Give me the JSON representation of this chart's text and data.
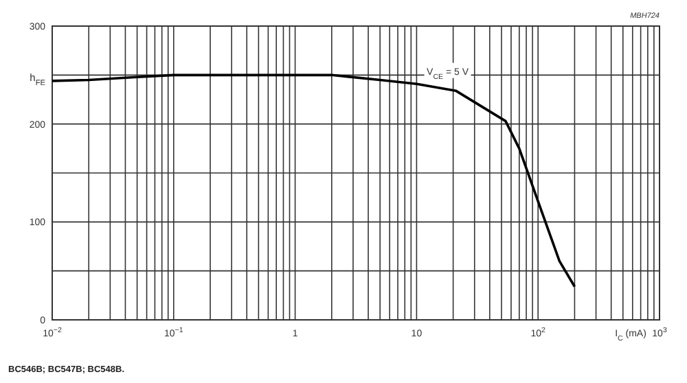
{
  "chart_data": {
    "type": "line",
    "xlabel": "I$_{C}$ (mA)",
    "ylabel": "h$_{FE}$",
    "log": "x",
    "x": [
      0.01,
      0.02,
      0.05,
      0.1,
      1,
      2,
      5,
      10,
      21,
      54,
      70,
      100,
      150,
      200
    ],
    "series": [
      {
        "color": "#000000",
        "values": [
          244,
          245,
          248,
          250,
          250,
          250,
          245,
          241,
          234,
          203,
          175,
          121,
          60,
          34
        ]
      }
    ],
    "xlim": [
      0.01,
      1000
    ],
    "xticks": [
      {
        "value": 0.01,
        "label": "10$^{−2}$"
      },
      {
        "value": 0.02,
        "label": null
      },
      {
        "value": 0.03,
        "label": null
      },
      {
        "value": 0.04,
        "label": null
      },
      {
        "value": 0.05,
        "label": null
      },
      {
        "value": 0.06,
        "label": null
      },
      {
        "value": 0.07,
        "label": null
      },
      {
        "value": 0.08,
        "label": null
      },
      {
        "value": 0.09,
        "label": null
      },
      {
        "value": 0.1,
        "label": "10$^{−1}$"
      },
      {
        "value": 0.2,
        "label": null
      },
      {
        "value": 0.3,
        "label": null
      },
      {
        "value": 0.4,
        "label": null
      },
      {
        "value": 0.5,
        "label": null
      },
      {
        "value": 0.6,
        "label": null
      },
      {
        "value": 0.7,
        "label": null
      },
      {
        "value": 0.8,
        "label": null
      },
      {
        "value": 0.9,
        "label": null
      },
      1,
      {
        "value": 2,
        "label": null
      },
      {
        "value": 3,
        "label": null
      },
      {
        "value": 4,
        "label": null
      },
      {
        "value": 5,
        "label": null
      },
      {
        "value": 6,
        "label": null
      },
      {
        "value": 7,
        "label": null
      },
      {
        "value": 8,
        "label": null
      },
      {
        "value": 9,
        "label": null
      },
      10,
      {
        "value": 20,
        "label": null
      },
      {
        "value": 30,
        "label": null
      },
      {
        "value": 40,
        "label": null
      },
      {
        "value": 50,
        "label": null
      },
      {
        "value": 60,
        "label": null
      },
      {
        "value": 70,
        "label": null
      },
      {
        "value": 80,
        "label": null
      },
      {
        "value": 90,
        "label": null
      },
      {
        "value": 100,
        "label": "10$^{2}$"
      },
      {
        "value": 200,
        "label": null
      },
      {
        "value": 300,
        "label": null
      },
      {
        "value": 400,
        "label": null
      },
      {
        "value": 500,
        "label": null
      },
      {
        "value": 600,
        "label": null
      },
      {
        "value": 700,
        "label": null
      },
      {
        "value": 800,
        "label": null
      },
      {
        "value": 900,
        "label": null
      },
      {
        "value": 1000,
        "label": "10$^{3}$"
      }
    ],
    "ylim": [
      0,
      300
    ],
    "yticks": [
      0,
      {
        "value": 50,
        "label": null
      },
      100,
      {
        "value": 150,
        "label": null
      },
      200,
      {
        "value": 250,
        "label": null
      },
      300
    ],
    "grid": true,
    "marker": "none",
    "line_style": "solid",
    "annotations": [
      {
        "text": "V$_{CE}$ = 5 V",
        "x": 18,
        "y": 254
      },
      "MBH724",
      "BC546B; BC547B; BC548B."
    ]
  }
}
